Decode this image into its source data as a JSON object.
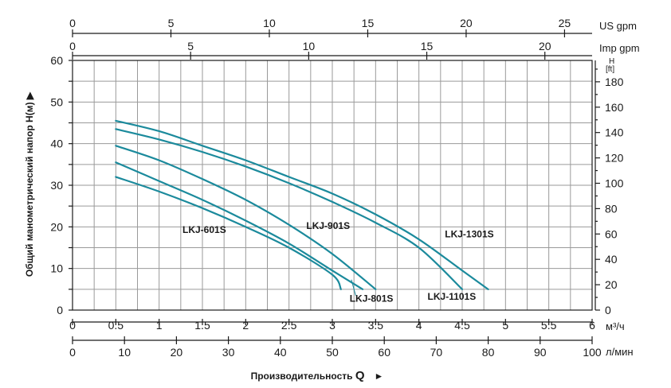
{
  "chart_data": {
    "type": "line",
    "x_unit": "м³/ч",
    "y_unit": "",
    "ylabel": "Общий манометрический напор Н(м) ▶",
    "xlabel_prefix": "Производительность ",
    "xlabel_symbol": "Q",
    "xlabel_arrow": "►",
    "xlim": [
      0,
      6
    ],
    "ylim": [
      0,
      60
    ],
    "x_ticks": [
      "0",
      "0.5",
      "1",
      "1.5",
      "2",
      "2.5",
      "3",
      "3.5",
      "4",
      "4.5",
      "5",
      "5.5",
      "6"
    ],
    "y_ticks": [
      "0",
      "10",
      "20",
      "30",
      "40",
      "50",
      "60"
    ],
    "grid": true,
    "secondary_axes": {
      "us_gpm": {
        "unit": "US gpm",
        "ticks": [
          {
            "value": 0,
            "label": "0"
          },
          {
            "value": 5,
            "label": "5"
          },
          {
            "value": 10,
            "label": "10"
          },
          {
            "value": 15,
            "label": "15"
          },
          {
            "value": 20,
            "label": "20"
          },
          {
            "value": 25,
            "label": "25"
          }
        ],
        "range": [
          0,
          26.4
        ]
      },
      "imp_gpm": {
        "unit": "Imp gpm",
        "ticks": [
          {
            "value": 0,
            "label": "0"
          },
          {
            "value": 5,
            "label": "5"
          },
          {
            "value": 10,
            "label": "10"
          },
          {
            "value": 15,
            "label": "15"
          },
          {
            "value": 20,
            "label": "20"
          }
        ],
        "range": [
          0,
          22
        ]
      },
      "l_min": {
        "unit": "л/мин",
        "ticks": [
          {
            "value": 0,
            "label": "0"
          },
          {
            "value": 10,
            "label": "10"
          },
          {
            "value": 20,
            "label": "20"
          },
          {
            "value": 30,
            "label": "30"
          },
          {
            "value": 40,
            "label": "40"
          },
          {
            "value": 50,
            "label": "50"
          },
          {
            "value": 60,
            "label": "60"
          },
          {
            "value": 70,
            "label": "70"
          },
          {
            "value": 80,
            "label": "80"
          },
          {
            "value": 90,
            "label": "90"
          },
          {
            "value": 100,
            "label": "100"
          }
        ],
        "range": [
          0,
          100
        ]
      },
      "feet": {
        "unit_line1": "H",
        "unit_line2": "[ft]",
        "ticks": [
          {
            "value": 0,
            "label": "0"
          },
          {
            "value": 20,
            "label": "20"
          },
          {
            "value": 40,
            "label": "40"
          },
          {
            "value": 60,
            "label": "60"
          },
          {
            "value": 80,
            "label": "80"
          },
          {
            "value": 100,
            "label": "100"
          },
          {
            "value": 120,
            "label": "120"
          },
          {
            "value": 140,
            "label": "140"
          },
          {
            "value": 160,
            "label": "160"
          },
          {
            "value": 180,
            "label": "180"
          }
        ],
        "range": [
          0,
          196.85
        ]
      }
    },
    "series": [
      {
        "name": "LKJ-601S",
        "x": [
          0.5,
          1.0,
          1.5,
          2.0,
          2.5,
          3.0,
          3.1
        ],
        "y": [
          32,
          28.5,
          24.5,
          20,
          15,
          8.5,
          5
        ]
      },
      {
        "name": "LKJ-801S",
        "x": [
          0.5,
          1.0,
          1.5,
          2.0,
          2.5,
          3.0,
          3.35
        ],
        "y": [
          35.5,
          31,
          26.5,
          21.5,
          16,
          9.5,
          5
        ]
      },
      {
        "name": "LKJ-901S",
        "x": [
          0.5,
          1.0,
          1.5,
          2.0,
          2.5,
          3.0,
          3.5
        ],
        "y": [
          39.5,
          36,
          31.5,
          26.5,
          20.5,
          13.5,
          5
        ]
      },
      {
        "name": "LKJ-1101S",
        "x": [
          0.5,
          1.0,
          1.5,
          2.0,
          2.5,
          3.0,
          3.5,
          4.0,
          4.5
        ],
        "y": [
          43.5,
          41,
          38,
          34.5,
          30.5,
          26,
          21,
          15,
          5
        ]
      },
      {
        "name": "LKJ-1301S",
        "x": [
          0.5,
          1.0,
          1.5,
          2.0,
          2.5,
          3.0,
          3.5,
          4.0,
          4.5,
          4.8
        ],
        "y": [
          45.5,
          43,
          39.5,
          36,
          32,
          28,
          23,
          17,
          9.5,
          5
        ]
      }
    ],
    "annotations": [
      {
        "text": "LKJ-601S",
        "x": 1.27,
        "y": 18.5
      },
      {
        "text": "LKJ-901S",
        "x": 2.7,
        "y": 19.5
      },
      {
        "text": "LKJ-801S",
        "x": 3.2,
        "y": 2
      },
      {
        "text": "LKJ-1101S",
        "x": 4.1,
        "y": 2.5
      },
      {
        "text": "LKJ-1301S",
        "x": 4.3,
        "y": 17.5
      }
    ]
  }
}
